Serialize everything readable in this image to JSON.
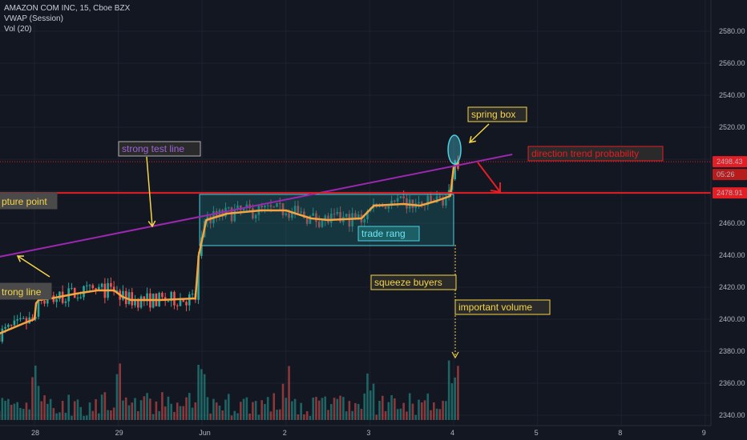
{
  "legend": {
    "symbol": "AMAZON COM INC, 15, Cboe BZX",
    "indicator1": "VWAP (Session)",
    "indicator2": "Vol (20)"
  },
  "colors": {
    "background": "#131722",
    "grid": "#1e2230",
    "up": "#26a69a",
    "down": "#ef5350",
    "vwap": "#f7a440",
    "trendline": "#9c27b0",
    "support": "#e31e24",
    "box_border": "#4dd0e1",
    "box_fill": "#1b5e63",
    "annotation_bg": "#2a2a2a",
    "annotation_text": "#f5d547",
    "annotation_border": "#f5d547"
  },
  "price_labels": {
    "last_price": "2498.43",
    "countdown": "05:26",
    "support_level": "2478.91"
  },
  "annotations": {
    "strong_test_line": "strong test line",
    "spring_box": "spring box",
    "direction_trend": "direction trend probability",
    "rupture_point": "pture point",
    "strong_line": "trong line",
    "trade_range": "trade rang",
    "squeeze_buyers": "squeeze buyers",
    "important_volume": "important volume"
  },
  "chart_data": {
    "type": "candlestick",
    "title": "AMAZON COM INC, 15, Cboe BZX",
    "xlabel": "",
    "ylabel": "",
    "ylim": [
      2335,
      2598
    ],
    "x_ticks": [
      {
        "label": "28",
        "day": 0
      },
      {
        "label": "29",
        "day": 1
      },
      {
        "label": "Jun",
        "day": 2
      },
      {
        "label": "2",
        "day": 3
      },
      {
        "label": "3",
        "day": 4
      },
      {
        "label": "4",
        "day": 5
      },
      {
        "label": "5",
        "day": 6
      },
      {
        "label": "8",
        "day": 7
      },
      {
        "label": "9",
        "day": 8
      }
    ],
    "y_ticks": [
      2340,
      2360,
      2380,
      2400,
      2420,
      2440,
      2460,
      2480,
      2500,
      2520,
      2540,
      2560,
      2580
    ],
    "vwap_path": [
      {
        "day": -0.42,
        "price": 2391
      },
      {
        "day": -0.1,
        "price": 2398
      },
      {
        "day": 0.0,
        "price": 2400
      },
      {
        "day": 0.02,
        "price": 2410
      },
      {
        "day": 0.05,
        "price": 2412
      },
      {
        "day": 0.2,
        "price": 2413
      },
      {
        "day": 0.5,
        "price": 2416
      },
      {
        "day": 0.75,
        "price": 2418
      },
      {
        "day": 0.95,
        "price": 2418
      },
      {
        "day": 1.05,
        "price": 2414
      },
      {
        "day": 1.15,
        "price": 2412
      },
      {
        "day": 1.5,
        "price": 2412
      },
      {
        "day": 1.92,
        "price": 2413
      },
      {
        "day": 1.96,
        "price": 2440
      },
      {
        "day": 2.05,
        "price": 2462
      },
      {
        "day": 2.3,
        "price": 2466
      },
      {
        "day": 2.7,
        "price": 2468
      },
      {
        "day": 3.0,
        "price": 2468
      },
      {
        "day": 3.3,
        "price": 2463
      },
      {
        "day": 3.5,
        "price": 2462
      },
      {
        "day": 3.9,
        "price": 2463
      },
      {
        "day": 4.05,
        "price": 2471
      },
      {
        "day": 4.4,
        "price": 2472
      },
      {
        "day": 4.6,
        "price": 2471
      },
      {
        "day": 4.8,
        "price": 2474
      },
      {
        "day": 4.96,
        "price": 2477
      },
      {
        "day": 5.0,
        "price": 2495
      },
      {
        "day": 5.06,
        "price": 2498
      }
    ],
    "trend_line": {
      "start": {
        "day": -0.42,
        "price": 2439
      },
      "end": {
        "day": 5.7,
        "price": 2503
      }
    },
    "support_line": {
      "price": 2478.91
    },
    "last_price_line": {
      "price": 2498.43
    },
    "trade_range_box": {
      "day_start": 1.97,
      "day_end": 5.0,
      "price_low": 2446,
      "price_high": 2478
    },
    "spring_ellipse": {
      "day": 5.01,
      "price": 2498
    }
  }
}
